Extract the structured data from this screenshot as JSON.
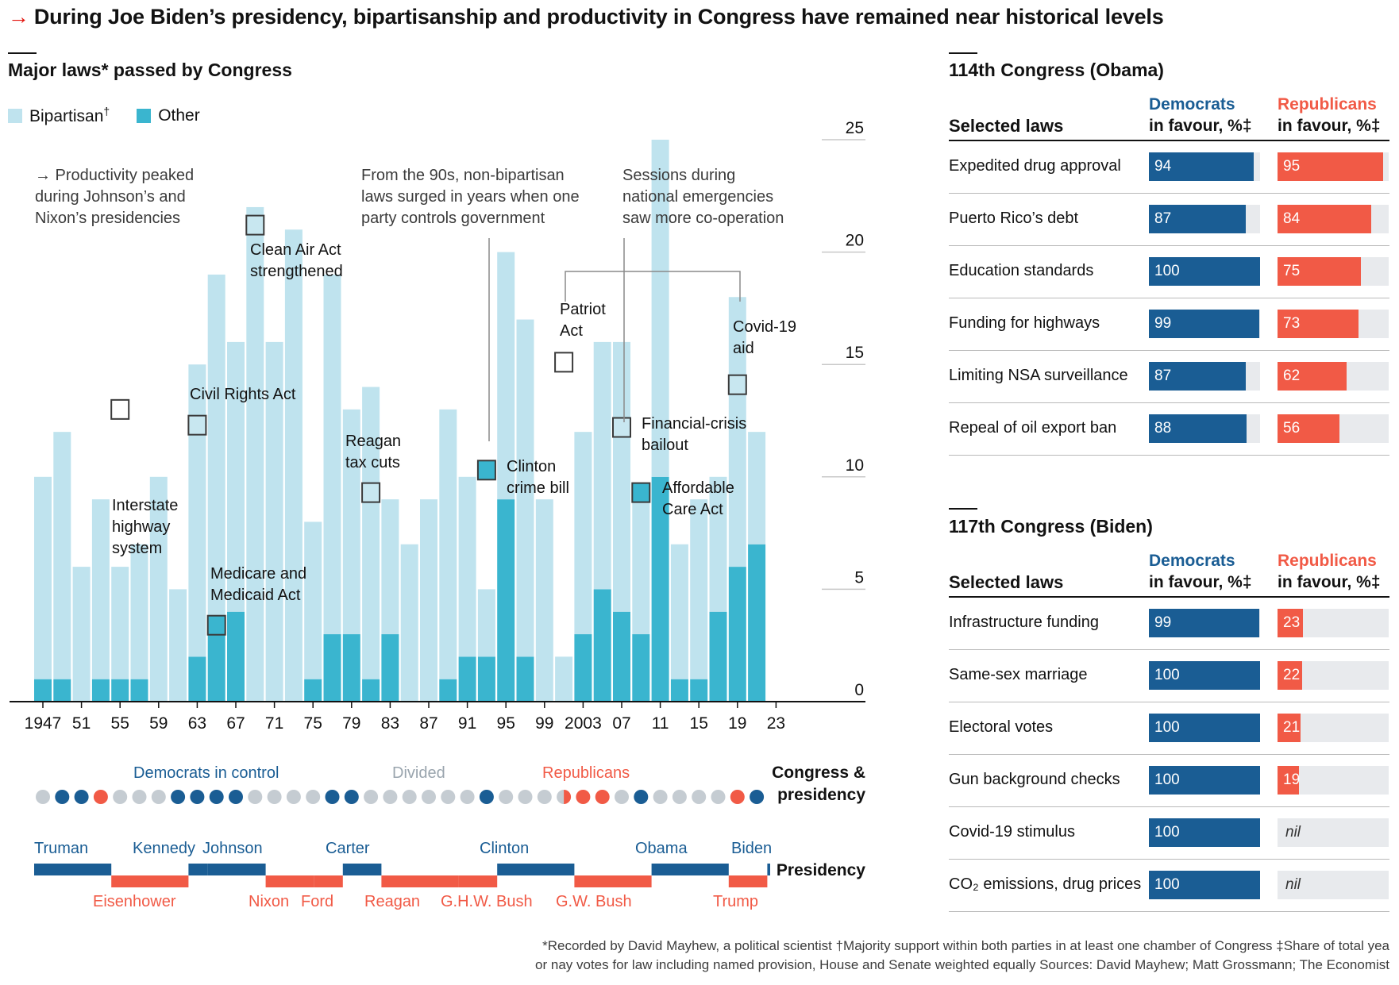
{
  "title": "During Joe Biden’s presidency, bipartisanship and productivity in Congress have remained near historical levels",
  "colors": {
    "bipartisan": "#bfe3ee",
    "other": "#3ab5cf",
    "dem": "#1a5d94",
    "rep": "#f15a46",
    "divided": "#c5ccd2",
    "track": "#e8eaed",
    "accent": "#e3120b"
  },
  "chart_data": {
    "type": "bar",
    "stacked": true,
    "title": "Major laws* passed by Congress",
    "legend": [
      {
        "key": "bipartisan",
        "label": "Bipartisan",
        "mark": "†"
      },
      {
        "key": "other",
        "label": "Other"
      }
    ],
    "ylim": [
      0,
      25
    ],
    "yticks": [
      "0",
      "5",
      "10",
      "15",
      "20",
      "25"
    ],
    "xtick_labels": [
      "1947",
      "51",
      "55",
      "59",
      "63",
      "67",
      "71",
      "75",
      "79",
      "83",
      "87",
      "91",
      "95",
      "99",
      "2003",
      "07",
      "11",
      "15",
      "19",
      "23"
    ],
    "sessions": [
      1947,
      1949,
      1951,
      1953,
      1955,
      1957,
      1959,
      1961,
      1963,
      1965,
      1967,
      1969,
      1971,
      1973,
      1975,
      1977,
      1979,
      1981,
      1983,
      1985,
      1987,
      1989,
      1991,
      1993,
      1995,
      1997,
      1999,
      2001,
      2003,
      2005,
      2007,
      2009,
      2011,
      2013,
      2015,
      2017,
      2019,
      2021
    ],
    "series": [
      {
        "name": "Bipartisan",
        "values": [
          9,
          11,
          6,
          8,
          5,
          6,
          10,
          5,
          13,
          16,
          12,
          22,
          16,
          21,
          7,
          16,
          10,
          13,
          6,
          7,
          9,
          12,
          8,
          3,
          11,
          15,
          9,
          2,
          9,
          11,
          12,
          6,
          15,
          6,
          8,
          6,
          12,
          5
        ]
      },
      {
        "name": "Other",
        "values": [
          1,
          1,
          0,
          1,
          1,
          1,
          0,
          0,
          2,
          3,
          4,
          0,
          0,
          0,
          1,
          3,
          3,
          1,
          3,
          0,
          0,
          1,
          2,
          2,
          9,
          2,
          0,
          0,
          3,
          5,
          4,
          3,
          10,
          1,
          1,
          4,
          6,
          7
        ]
      }
    ],
    "annotations": [
      {
        "text": "→ Productivity peaked during Johnson’s and Nixon’s presidencies",
        "year": 1965
      },
      {
        "text": "From the 90s, non-bipartisan laws surged in years when one party controls government",
        "year": 1993
      },
      {
        "text": "Sessions during national emergencies saw more co-operation",
        "year": 2007
      }
    ],
    "highlighted_laws": [
      {
        "label": "Interstate highway system",
        "year": 1955
      },
      {
        "label": "Civil Rights Act",
        "year": 1963
      },
      {
        "label": "Medicare and Medicaid Act",
        "year": 1965
      },
      {
        "label": "Clean Air Act strengthened",
        "year": 1969
      },
      {
        "label": "Reagan tax cuts",
        "year": 1981
      },
      {
        "label": "Clinton crime bill",
        "year": 1993
      },
      {
        "label": "Patriot Act",
        "year": 2001
      },
      {
        "label": "Financial-crisis bailout",
        "year": 2007
      },
      {
        "label": "Affordable Care Act",
        "year": 2009
      },
      {
        "label": "Covid-19 aid",
        "year": 2019
      }
    ]
  },
  "control": {
    "labels": {
      "dem": "Democrats in control",
      "divided": "Divided",
      "rep": "Republicans",
      "row": "Congress & presidency"
    },
    "dots": [
      "divided",
      "dem",
      "dem",
      "rep",
      "divided",
      "divided",
      "divided",
      "dem",
      "dem",
      "dem",
      "dem",
      "divided",
      "divided",
      "divided",
      "divided",
      "dem",
      "dem",
      "divided",
      "divided",
      "divided",
      "divided",
      "divided",
      "divided",
      "dem",
      "divided",
      "divided",
      "divided",
      "half",
      "rep",
      "rep",
      "divided",
      "dem",
      "divided",
      "divided",
      "divided",
      "divided",
      "rep",
      "dem"
    ]
  },
  "presidency": {
    "row_label": "Presidency",
    "terms": [
      {
        "name": "Truman",
        "party": "dem"
      },
      {
        "name": "Eisenhower",
        "party": "rep"
      },
      {
        "name": "Kennedy",
        "party": "dem"
      },
      {
        "name": "Johnson",
        "party": "dem"
      },
      {
        "name": "Nixon",
        "party": "rep"
      },
      {
        "name": "Ford",
        "party": "rep"
      },
      {
        "name": "Carter",
        "party": "dem"
      },
      {
        "name": "Reagan",
        "party": "rep"
      },
      {
        "name": "G.H.W. Bush",
        "party": "rep"
      },
      {
        "name": "Clinton",
        "party": "dem"
      },
      {
        "name": "G.W. Bush",
        "party": "rep"
      },
      {
        "name": "Obama",
        "party": "dem"
      },
      {
        "name": "Trump",
        "party": "rep"
      },
      {
        "name": "Biden",
        "party": "dem"
      }
    ]
  },
  "tables": [
    {
      "title": "114th Congress (Obama)",
      "col_law": "Selected laws",
      "col_dem": [
        "Democrats",
        "in favour, %‡"
      ],
      "col_rep": [
        "Republicans",
        "in favour, %‡"
      ],
      "rows": [
        {
          "law": "Expedited drug approval",
          "dem": 94,
          "rep": 95
        },
        {
          "law": "Puerto Rico’s debt",
          "dem": 87,
          "rep": 84
        },
        {
          "law": "Education standards",
          "dem": 100,
          "rep": 75
        },
        {
          "law": "Funding for highways",
          "dem": 99,
          "rep": 73
        },
        {
          "law": "Limiting NSA surveillance",
          "dem": 87,
          "rep": 62
        },
        {
          "law": "Repeal of oil export ban",
          "dem": 88,
          "rep": 56
        }
      ]
    },
    {
      "title": "117th Congress (Biden)",
      "col_law": "Selected laws",
      "col_dem": [
        "Democrats",
        "in favour, %‡"
      ],
      "col_rep": [
        "Republicans",
        "in favour, %‡"
      ],
      "rows": [
        {
          "law": "Infrastructure funding",
          "dem": 99,
          "rep": 23
        },
        {
          "law": "Same-sex marriage",
          "dem": 100,
          "rep": 22
        },
        {
          "law": "Electoral votes",
          "dem": 100,
          "rep": 21
        },
        {
          "law": "Gun background checks",
          "dem": 100,
          "rep": 19
        },
        {
          "law": "Covid-19 stimulus",
          "dem": 100,
          "rep": null,
          "rep_text": "nil"
        },
        {
          "law": "CO₂ emissions, drug prices",
          "dem": 100,
          "rep": null,
          "rep_text": "nil"
        }
      ]
    }
  ],
  "footnote": {
    "line1": "*Recorded by David Mayhew, a political scientist   †Majority support within both parties in at least one chamber of Congress   ‡Share of total yea",
    "line2": "or nay votes for law including named provision, House and Senate weighted equally   Sources: David Mayhew; Matt Grossmann; The Economist"
  }
}
